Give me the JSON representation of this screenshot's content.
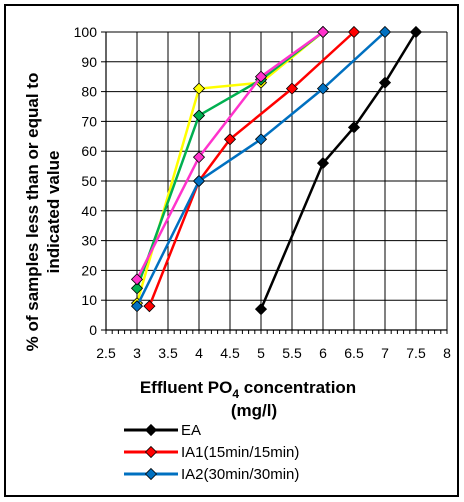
{
  "chart_data": {
    "type": "line",
    "xlabel_prefix": "Effluent PO",
    "xlabel_subscript": "4",
    "xlabel_suffix": " concentration",
    "xlabel_line2": "(mg/l)",
    "ylabel_line1": "% of samples less than or equal to",
    "ylabel_line2": "indicated value",
    "xlim": [
      2.5,
      8
    ],
    "ylim": [
      0,
      100
    ],
    "x_ticks": [
      "2.5",
      "3",
      "3.5",
      "4",
      "4.5",
      "5",
      "5.5",
      "6",
      "6.5",
      "7",
      "7.5",
      "8"
    ],
    "y_ticks": [
      "0",
      "10",
      "20",
      "30",
      "40",
      "50",
      "60",
      "70",
      "80",
      "90",
      "100"
    ],
    "grid": true,
    "legend_position": "bottom",
    "series": [
      {
        "name": "",
        "color": "#ffff00",
        "x": [
          3,
          4,
          5,
          6
        ],
        "y": [
          9,
          81,
          83,
          100
        ]
      },
      {
        "name": "",
        "color": "#00b050",
        "x": [
          3,
          4,
          5,
          6
        ],
        "y": [
          14,
          72,
          84,
          100
        ]
      },
      {
        "name": "",
        "color": "#ff33cc",
        "x": [
          3,
          4,
          5,
          6
        ],
        "y": [
          17,
          58,
          85,
          100
        ]
      },
      {
        "name": "EA",
        "color": "#000000",
        "x": [
          5,
          6,
          6.5,
          7,
          7.5
        ],
        "y": [
          7,
          56,
          68,
          83,
          100
        ]
      },
      {
        "name": "IA1(15min/15min)",
        "color": "#ff0000",
        "x": [
          3.2,
          4,
          4.5,
          5.5,
          6.5
        ],
        "y": [
          8,
          50,
          64,
          81,
          100
        ]
      },
      {
        "name": "IA2(30min/30min)",
        "color": "#0070c0",
        "x": [
          3,
          4,
          5,
          6,
          7
        ],
        "y": [
          8,
          50,
          64,
          81,
          100
        ]
      }
    ]
  }
}
